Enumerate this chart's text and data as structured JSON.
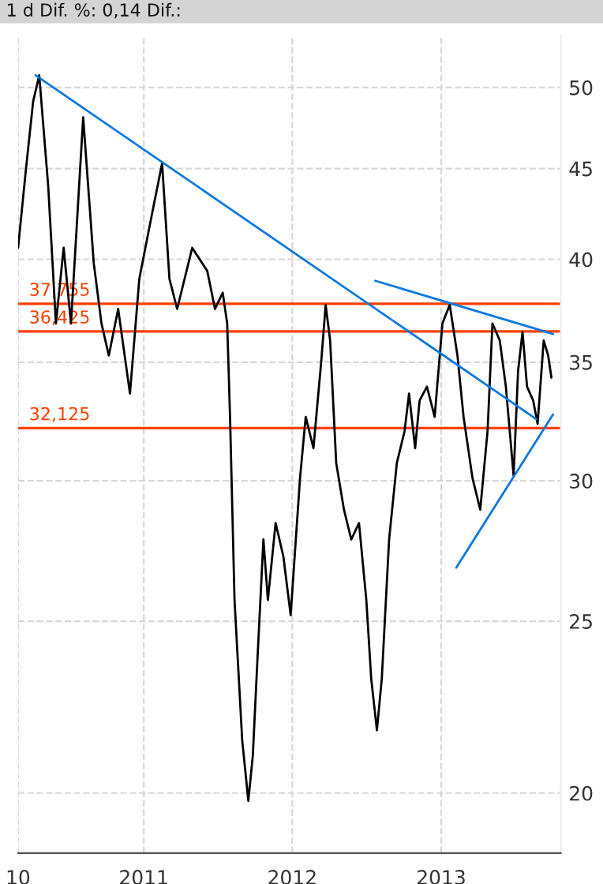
{
  "chart_data": {
    "type": "line",
    "title": "1 d Dif. %: 0,14 Dif.:",
    "xlim": [
      "2010-02-26",
      "2013-10-22"
    ],
    "xticks": [
      {
        "value": "2010-02-26",
        "label": "10"
      },
      {
        "value": "2011-01-01",
        "label": "2011"
      },
      {
        "value": "2012-01-01",
        "label": "2012"
      },
      {
        "value": "2013-01-01",
        "label": "2013"
      }
    ],
    "ylim": [
      18.5,
      53.5
    ],
    "yticks": [
      20,
      25,
      30,
      35,
      40,
      45,
      50
    ],
    "log": true,
    "grid": true,
    "legend": false,
    "marker": "none",
    "line_style": "solid",
    "ref_lines": [
      {
        "axis": "y",
        "value": 37.755,
        "label": "37,755",
        "color": "#ff4000"
      },
      {
        "axis": "y",
        "value": 36.425,
        "label": "36,425",
        "color": "#ff4000"
      },
      {
        "axis": "y",
        "value": 32.125,
        "label": "32,125",
        "color": "#ff4000"
      }
    ],
    "series": [
      {
        "color": "#000000",
        "x": [
          "2010-02-26",
          "2010-03-17",
          "2010-04-04",
          "2010-04-19",
          "2010-05-11",
          "2010-05-30",
          "2010-06-18",
          "2010-07-06",
          "2010-08-05",
          "2010-08-31",
          "2010-09-19",
          "2010-10-07",
          "2010-10-30",
          "2010-11-28",
          "2010-12-21",
          "2011-01-20",
          "2011-02-15",
          "2011-03-05",
          "2011-03-24",
          "2011-04-30",
          "2011-06-06",
          "2011-06-25",
          "2011-07-14",
          "2011-07-25",
          "2011-08-01",
          "2011-08-12",
          "2011-08-31",
          "2011-09-15",
          "2011-09-26",
          "2011-10-07",
          "2011-10-22",
          "2011-11-02",
          "2011-11-21",
          "2011-12-10",
          "2011-12-28",
          "2012-01-20",
          "2012-02-03",
          "2012-02-22",
          "2012-03-12",
          "2012-03-23",
          "2012-04-03",
          "2012-04-18",
          "2012-05-07",
          "2012-05-25",
          "2012-06-13",
          "2012-07-01",
          "2012-07-13",
          "2012-07-27",
          "2012-08-08",
          "2012-08-26",
          "2012-09-14",
          "2012-10-03",
          "2012-10-14",
          "2012-10-29",
          "2012-11-09",
          "2012-11-27",
          "2012-12-16",
          "2013-01-04",
          "2013-01-22",
          "2013-02-10",
          "2013-02-25",
          "2013-03-19",
          "2013-04-07",
          "2013-04-25",
          "2013-05-07",
          "2013-05-25",
          "2013-06-09",
          "2013-06-28",
          "2013-07-09",
          "2013-07-20",
          "2013-07-31",
          "2013-08-15",
          "2013-08-26",
          "2013-09-10",
          "2013-09-21",
          "2013-09-29"
        ],
        "values": [
          40.6,
          44.9,
          49.1,
          50.8,
          44.0,
          36.8,
          40.6,
          36.8,
          48.1,
          39.8,
          36.8,
          35.3,
          37.5,
          33.6,
          39.0,
          42.3,
          45.3,
          39.0,
          37.5,
          40.6,
          39.4,
          37.5,
          38.3,
          36.8,
          32.6,
          25.7,
          21.4,
          19.8,
          21.0,
          23.7,
          27.8,
          25.7,
          28.4,
          27.2,
          25.2,
          30.1,
          32.6,
          31.3,
          35.0,
          37.7,
          36.0,
          30.7,
          28.9,
          27.8,
          28.4,
          25.7,
          23.2,
          21.7,
          23.2,
          27.8,
          30.7,
          32.0,
          33.6,
          31.3,
          33.3,
          33.9,
          32.6,
          36.8,
          37.7,
          35.3,
          32.6,
          30.1,
          28.9,
          32.0,
          36.8,
          36.0,
          33.9,
          30.2,
          34.6,
          36.4,
          33.9,
          33.3,
          32.3,
          36.0,
          35.3,
          34.3
        ]
      },
      {
        "color": "#0a78e0",
        "x": [
          "2010-04-10",
          "2013-08-23"
        ],
        "values": [
          50.8,
          32.5
        ]
      },
      {
        "color": "#0a78e0",
        "x": [
          "2012-07-23",
          "2013-10-03"
        ],
        "values": [
          38.9,
          36.3
        ]
      },
      {
        "color": "#0a78e0",
        "x": [
          "2013-02-07",
          "2013-10-03"
        ],
        "values": [
          26.8,
          32.7
        ]
      }
    ]
  }
}
